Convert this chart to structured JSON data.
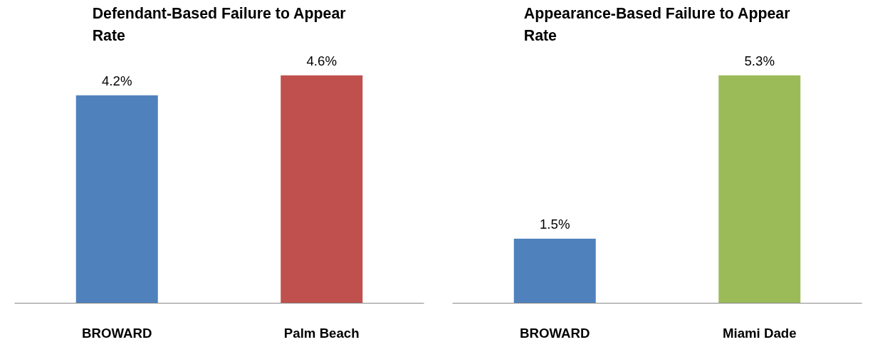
{
  "chart_data": [
    {
      "type": "bar",
      "title": "Defendant-Based Failure to Appear Rate",
      "categories": [
        "BROWARD",
        "Palm Beach"
      ],
      "values": [
        4.2,
        4.6
      ],
      "colors": [
        "#4f81bd",
        "#c0504d"
      ],
      "value_labels": [
        "4.2%",
        "4.6%"
      ]
    },
    {
      "type": "bar",
      "title": "Appearance-Based Failure to Appear Rate",
      "categories": [
        "BROWARD",
        "Miami Dade"
      ],
      "values": [
        1.5,
        5.3
      ],
      "colors": [
        "#4f81bd",
        "#9bbb59"
      ],
      "value_labels": [
        "1.5%",
        "5.3%"
      ]
    }
  ]
}
